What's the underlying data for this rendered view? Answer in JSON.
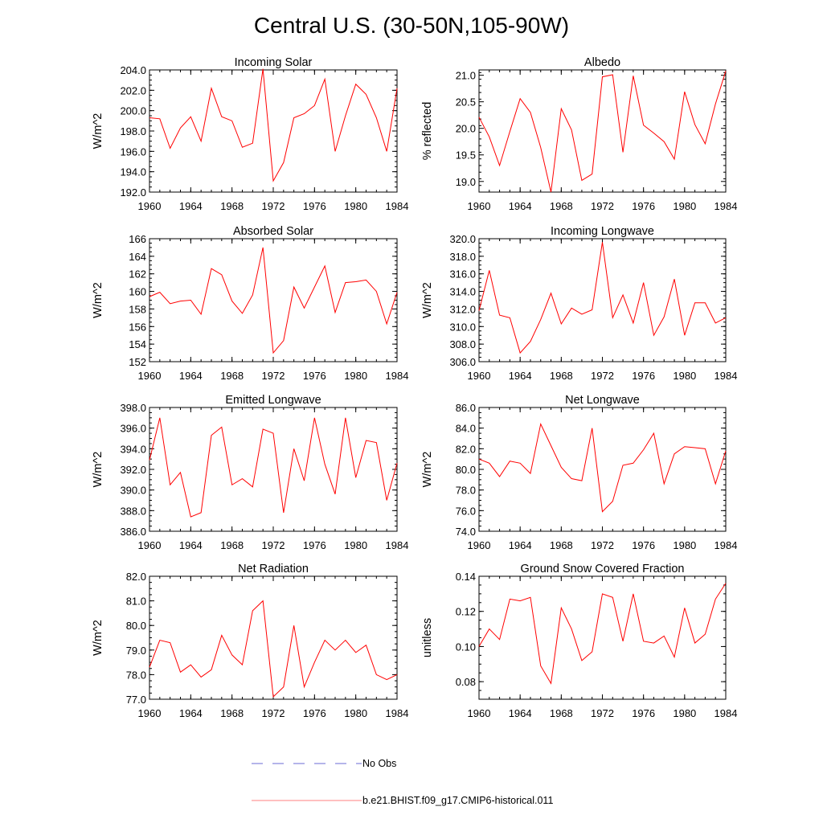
{
  "title": "Central U.S. (30-50N,105-90W)",
  "colors": {
    "model": "#ff0000",
    "obs": "#6b6bd6",
    "axis": "#000000"
  },
  "legend": [
    {
      "label": "No Obs",
      "color": "#6b6bd6",
      "style": "dashed"
    },
    {
      "label": "b.e21.BHIST.f09_g17.CMIP6-historical.011",
      "color": "#ff8080",
      "style": "solid"
    }
  ],
  "chart_data": [
    {
      "type": "line",
      "title": "Incoming Solar",
      "ylabel": "W/m^2",
      "xlim": [
        1960,
        1984
      ],
      "ylim": [
        192.0,
        204.0
      ],
      "xticks": [
        1960,
        1964,
        1968,
        1972,
        1976,
        1980,
        1984
      ],
      "yticks": [
        192.0,
        194.0,
        196.0,
        198.0,
        200.0,
        202.0,
        204.0
      ],
      "ydecimals": 1,
      "x": [
        1960,
        1961,
        1962,
        1963,
        1964,
        1965,
        1966,
        1967,
        1968,
        1969,
        1970,
        1971,
        1972,
        1973,
        1974,
        1975,
        1976,
        1977,
        1978,
        1979,
        1980,
        1981,
        1982,
        1983,
        1984
      ],
      "series": [
        {
          "name": "b.e21.BHIST.f09_g17.CMIP6-historical.011",
          "values": [
            199.3,
            199.2,
            196.3,
            198.3,
            199.4,
            197.0,
            202.2,
            199.4,
            199.0,
            196.4,
            196.8,
            204.1,
            193.1,
            194.9,
            199.3,
            199.7,
            200.5,
            203.1,
            196.0,
            199.5,
            202.6,
            201.6,
            199.3,
            196.0,
            202.2
          ]
        }
      ]
    },
    {
      "type": "line",
      "title": "Albedo",
      "ylabel": "% reflected",
      "xlim": [
        1960,
        1984
      ],
      "ylim": [
        18.8,
        21.1
      ],
      "xticks": [
        1960,
        1964,
        1968,
        1972,
        1976,
        1980,
        1984
      ],
      "yticks": [
        19.0,
        19.5,
        20.0,
        20.5,
        21.0
      ],
      "ydecimals": 1,
      "x": [
        1960,
        1961,
        1962,
        1963,
        1964,
        1965,
        1966,
        1967,
        1968,
        1969,
        1970,
        1971,
        1972,
        1973,
        1974,
        1975,
        1976,
        1977,
        1978,
        1979,
        1980,
        1981,
        1982,
        1983,
        1984
      ],
      "series": [
        {
          "name": "b.e21.BHIST.f09_g17.CMIP6-historical.011",
          "values": [
            20.21,
            19.84,
            19.3,
            19.94,
            20.56,
            20.3,
            19.64,
            18.8,
            20.37,
            19.97,
            19.02,
            19.14,
            20.97,
            21.01,
            19.55,
            20.99,
            20.06,
            19.91,
            19.75,
            19.42,
            20.69,
            20.07,
            19.71,
            20.46,
            21.08
          ]
        }
      ]
    },
    {
      "type": "line",
      "title": "Absorbed Solar",
      "ylabel": "W/m^2",
      "xlim": [
        1960,
        1984
      ],
      "ylim": [
        152,
        166
      ],
      "xticks": [
        1960,
        1964,
        1968,
        1972,
        1976,
        1980,
        1984
      ],
      "yticks": [
        152,
        154,
        156,
        158,
        160,
        162,
        164,
        166
      ],
      "ydecimals": 0,
      "x": [
        1960,
        1961,
        1962,
        1963,
        1964,
        1965,
        1966,
        1967,
        1968,
        1969,
        1970,
        1971,
        1972,
        1973,
        1974,
        1975,
        1976,
        1977,
        1978,
        1979,
        1980,
        1981,
        1982,
        1983,
        1984
      ],
      "series": [
        {
          "name": "b.e21.BHIST.f09_g17.CMIP6-historical.011",
          "values": [
            159.4,
            159.9,
            158.6,
            158.9,
            159.0,
            157.4,
            162.6,
            161.9,
            158.9,
            157.5,
            159.6,
            165.0,
            153.0,
            154.4,
            160.5,
            158.1,
            160.5,
            162.9,
            157.6,
            161.0,
            161.1,
            161.3,
            160.0,
            156.3,
            159.9
          ]
        }
      ]
    },
    {
      "type": "line",
      "title": "Incoming Longwave",
      "ylabel": "W/m^2",
      "xlim": [
        1960,
        1984
      ],
      "ylim": [
        306.0,
        320.0
      ],
      "xticks": [
        1960,
        1964,
        1968,
        1972,
        1976,
        1980,
        1984
      ],
      "yticks": [
        306.0,
        308.0,
        310.0,
        312.0,
        314.0,
        316.0,
        318.0,
        320.0
      ],
      "ydecimals": 1,
      "x": [
        1960,
        1961,
        1962,
        1963,
        1964,
        1965,
        1966,
        1967,
        1968,
        1969,
        1970,
        1971,
        1972,
        1973,
        1974,
        1975,
        1976,
        1977,
        1978,
        1979,
        1980,
        1981,
        1982,
        1983,
        1984
      ],
      "series": [
        {
          "name": "b.e21.BHIST.f09_g17.CMIP6-historical.011",
          "values": [
            311.8,
            316.4,
            311.3,
            311.0,
            307.0,
            308.3,
            310.8,
            313.8,
            310.3,
            312.1,
            311.4,
            311.9,
            319.6,
            311.0,
            313.6,
            310.4,
            315.0,
            309.0,
            311.1,
            315.4,
            309.0,
            312.7,
            312.7,
            310.4,
            311.0
          ]
        }
      ]
    },
    {
      "type": "line",
      "title": "Emitted Longwave",
      "ylabel": "W/m^2",
      "xlim": [
        1960,
        1984
      ],
      "ylim": [
        386.0,
        398.0
      ],
      "xticks": [
        1960,
        1964,
        1968,
        1972,
        1976,
        1980,
        1984
      ],
      "yticks": [
        386.0,
        388.0,
        390.0,
        392.0,
        394.0,
        396.0,
        398.0
      ],
      "ydecimals": 1,
      "x": [
        1960,
        1961,
        1962,
        1963,
        1964,
        1965,
        1966,
        1967,
        1968,
        1969,
        1970,
        1971,
        1972,
        1973,
        1974,
        1975,
        1976,
        1977,
        1978,
        1979,
        1980,
        1981,
        1982,
        1983,
        1984
      ],
      "series": [
        {
          "name": "b.e21.BHIST.f09_g17.CMIP6-historical.011",
          "values": [
            392.9,
            397.0,
            390.5,
            391.7,
            387.4,
            387.8,
            395.3,
            396.1,
            390.5,
            391.1,
            390.3,
            395.9,
            395.5,
            387.8,
            394.0,
            390.9,
            397.0,
            392.5,
            389.6,
            397.0,
            391.2,
            394.8,
            394.6,
            389.0,
            392.6
          ]
        }
      ]
    },
    {
      "type": "line",
      "title": "Net Longwave",
      "ylabel": "W/m^2",
      "xlim": [
        1960,
        1984
      ],
      "ylim": [
        74.0,
        86.0
      ],
      "xticks": [
        1960,
        1964,
        1968,
        1972,
        1976,
        1980,
        1984
      ],
      "yticks": [
        74.0,
        76.0,
        78.0,
        80.0,
        82.0,
        84.0,
        86.0
      ],
      "ydecimals": 1,
      "x": [
        1960,
        1961,
        1962,
        1963,
        1964,
        1965,
        1966,
        1967,
        1968,
        1969,
        1970,
        1971,
        1972,
        1973,
        1974,
        1975,
        1976,
        1977,
        1978,
        1979,
        1980,
        1981,
        1982,
        1983,
        1984
      ],
      "series": [
        {
          "name": "b.e21.BHIST.f09_g17.CMIP6-historical.011",
          "values": [
            81.0,
            80.6,
            79.3,
            80.8,
            80.6,
            79.6,
            84.4,
            82.3,
            80.2,
            79.1,
            78.9,
            84.0,
            75.9,
            76.9,
            80.4,
            80.6,
            81.9,
            83.5,
            78.6,
            81.5,
            82.2,
            82.1,
            82.0,
            78.6,
            81.8
          ]
        }
      ]
    },
    {
      "type": "line",
      "title": "Net Radiation",
      "ylabel": "W/m^2",
      "xlim": [
        1960,
        1984
      ],
      "ylim": [
        77.0,
        82.0
      ],
      "xticks": [
        1960,
        1964,
        1968,
        1972,
        1976,
        1980,
        1984
      ],
      "yticks": [
        77.0,
        78.0,
        79.0,
        80.0,
        81.0,
        82.0
      ],
      "ydecimals": 1,
      "x": [
        1960,
        1961,
        1962,
        1963,
        1964,
        1965,
        1966,
        1967,
        1968,
        1969,
        1970,
        1971,
        1972,
        1973,
        1974,
        1975,
        1976,
        1977,
        1978,
        1979,
        1980,
        1981,
        1982,
        1983,
        1984
      ],
      "series": [
        {
          "name": "b.e21.BHIST.f09_g17.CMIP6-historical.011",
          "values": [
            78.3,
            79.4,
            79.3,
            78.1,
            78.4,
            77.9,
            78.2,
            79.6,
            78.8,
            78.4,
            80.6,
            81.0,
            77.1,
            77.5,
            80.0,
            77.5,
            78.5,
            79.4,
            79.0,
            79.4,
            78.9,
            79.2,
            78.0,
            77.8,
            78.0
          ]
        }
      ]
    },
    {
      "type": "line",
      "title": "Ground Snow Covered Fraction",
      "ylabel": "unitless",
      "xlim": [
        1960,
        1984
      ],
      "ylim": [
        0.07,
        0.14
      ],
      "xticks": [
        1960,
        1964,
        1968,
        1972,
        1976,
        1980,
        1984
      ],
      "yticks": [
        0.08,
        0.1,
        0.12,
        0.14
      ],
      "ydecimals": 2,
      "x": [
        1960,
        1961,
        1962,
        1963,
        1964,
        1965,
        1966,
        1967,
        1968,
        1969,
        1970,
        1971,
        1972,
        1973,
        1974,
        1975,
        1976,
        1977,
        1978,
        1979,
        1980,
        1981,
        1982,
        1983,
        1984
      ],
      "series": [
        {
          "name": "b.e21.BHIST.f09_g17.CMIP6-historical.011",
          "values": [
            0.1,
            0.11,
            0.104,
            0.127,
            0.126,
            0.128,
            0.089,
            0.079,
            0.122,
            0.11,
            0.092,
            0.097,
            0.13,
            0.128,
            0.103,
            0.13,
            0.103,
            0.102,
            0.106,
            0.094,
            0.122,
            0.102,
            0.107,
            0.127,
            0.136
          ]
        }
      ]
    }
  ]
}
